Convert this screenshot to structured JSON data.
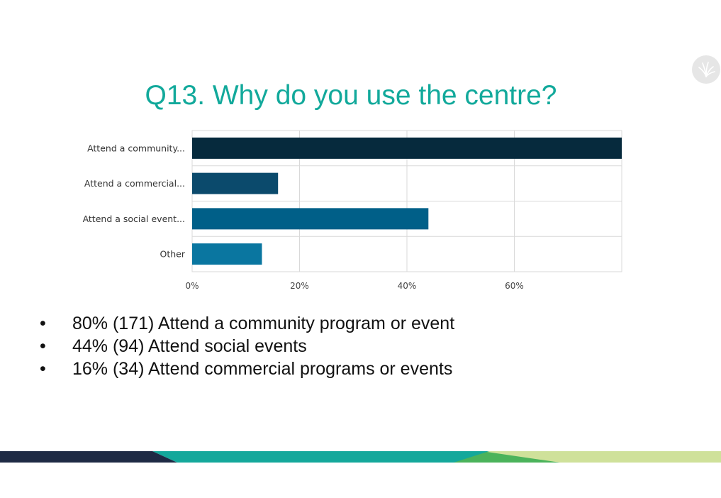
{
  "page": {
    "title": "Q13. Why do you use the centre?",
    "logo_icon": "leaf-logo-icon",
    "bullet_glyph": "•",
    "bullets": [
      "80% (171) Attend a community program or event",
      "44% (94) Attend social events",
      "16% (34) Attend commercial programs or events"
    ],
    "colors": {
      "title": "#12a99b",
      "footer_navy": "#1e2a44",
      "footer_teal": "#14a89b",
      "footer_green": "#4bb35b",
      "footer_lime": "#cfe19a"
    }
  },
  "chart_data": {
    "type": "bar",
    "orientation": "horizontal",
    "categories": [
      "Attend a community...",
      "Attend a commercial...",
      "Attend a social event...",
      "Other"
    ],
    "values": [
      80,
      16,
      44,
      13
    ],
    "colors": [
      "#062a3d",
      "#0b4a6c",
      "#005f88",
      "#0a76a0"
    ],
    "xticks": [
      "0%",
      "20%",
      "40%",
      "60%"
    ],
    "xtick_values": [
      0,
      20,
      40,
      60
    ],
    "xlim": [
      0,
      80
    ],
    "grid": true,
    "legend": "none",
    "xlabel": "",
    "ylabel": ""
  }
}
